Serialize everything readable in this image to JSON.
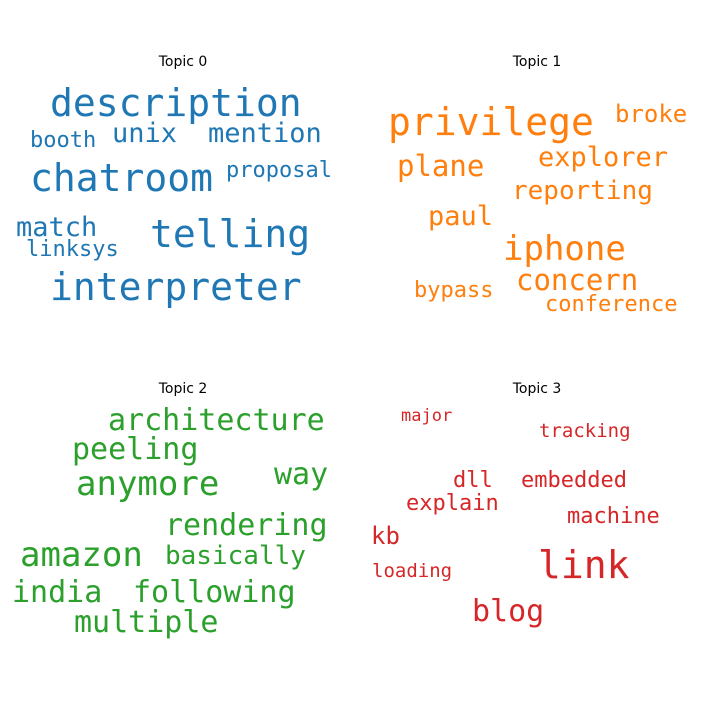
{
  "chart_data": {
    "type": "wordcloud",
    "panels": [
      {
        "title": "Topic 0",
        "color": "#1f77b4",
        "words": [
          {
            "text": "description",
            "weight": 1.0
          },
          {
            "text": "interpreter",
            "weight": 0.95
          },
          {
            "text": "chatroom",
            "weight": 0.93
          },
          {
            "text": "telling",
            "weight": 0.92
          },
          {
            "text": "unix",
            "weight": 0.72
          },
          {
            "text": "mention",
            "weight": 0.72
          },
          {
            "text": "match",
            "weight": 0.72
          },
          {
            "text": "booth",
            "weight": 0.6
          },
          {
            "text": "proposal",
            "weight": 0.6
          },
          {
            "text": "linksys",
            "weight": 0.6
          }
        ]
      },
      {
        "title": "Topic 1",
        "color": "#ff7f0e",
        "words": [
          {
            "text": "privilege",
            "weight": 1.0
          },
          {
            "text": "iphone",
            "weight": 0.92
          },
          {
            "text": "plane",
            "weight": 0.8
          },
          {
            "text": "concern",
            "weight": 0.8
          },
          {
            "text": "explorer",
            "weight": 0.72
          },
          {
            "text": "paul",
            "weight": 0.72
          },
          {
            "text": "reporting",
            "weight": 0.68
          },
          {
            "text": "broke",
            "weight": 0.65
          },
          {
            "text": "bypass",
            "weight": 0.6
          },
          {
            "text": "conference",
            "weight": 0.6
          }
        ]
      },
      {
        "title": "Topic 2",
        "color": "#2ca02c",
        "words": [
          {
            "text": "anymore",
            "weight": 1.0
          },
          {
            "text": "amazon",
            "weight": 1.0
          },
          {
            "text": "peeling",
            "weight": 0.85
          },
          {
            "text": "architecture",
            "weight": 0.85
          },
          {
            "text": "way",
            "weight": 0.85
          },
          {
            "text": "rendering",
            "weight": 0.85
          },
          {
            "text": "multiple",
            "weight": 0.85
          },
          {
            "text": "basically",
            "weight": 0.8
          },
          {
            "text": "india",
            "weight": 0.85
          },
          {
            "text": "following",
            "weight": 0.85
          }
        ]
      },
      {
        "title": "Topic 3",
        "color": "#d62728",
        "words": [
          {
            "text": "link",
            "weight": 1.0
          },
          {
            "text": "blog",
            "weight": 0.85
          },
          {
            "text": "kb",
            "weight": 0.65
          },
          {
            "text": "dll",
            "weight": 0.62
          },
          {
            "text": "embedded",
            "weight": 0.62
          },
          {
            "text": "machine",
            "weight": 0.6
          },
          {
            "text": "explain",
            "weight": 0.6
          },
          {
            "text": "tracking",
            "weight": 0.55
          },
          {
            "text": "loading",
            "weight": 0.55
          },
          {
            "text": "major",
            "weight": 0.52
          }
        ]
      }
    ]
  }
}
